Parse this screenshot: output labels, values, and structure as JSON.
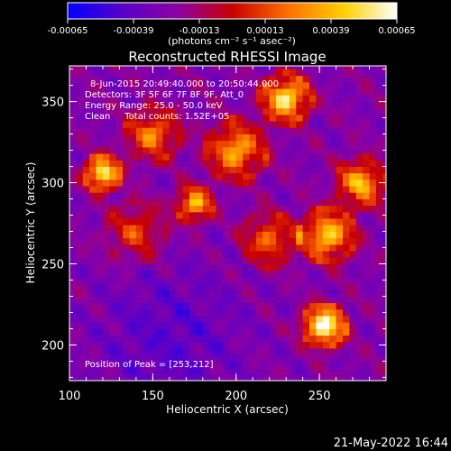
{
  "chart_data": {
    "type": "heatmap",
    "title": "Reconstructed RHESSI Image",
    "xlabel": "Heliocentric X (arcsec)",
    "ylabel": "Heliocentric Y (arcsec)",
    "xlim": [
      100,
      290
    ],
    "ylim": [
      178,
      372
    ],
    "x_ticks": [
      100,
      150,
      200,
      250
    ],
    "y_ticks": [
      200,
      250,
      300,
      350
    ],
    "x_tick_labels": [
      "100",
      "150",
      "200",
      "250"
    ],
    "y_tick_labels": [
      "200",
      "250",
      "300",
      "350"
    ],
    "colorbar": {
      "range": [
        -0.00065,
        0.00065
      ],
      "tick_values": [
        -0.00065,
        -0.00039,
        -0.00013,
        0.00013,
        0.00039,
        0.00065
      ],
      "tick_labels": [
        "-0.00065",
        "-0.00039",
        "-0.00013",
        "0.00013",
        "0.00039",
        "0.00065"
      ],
      "unit_label": "(photons cm⁻² s⁻¹ asec⁻²)",
      "colors": [
        "#0000ff",
        "#5a00c8",
        "#8e00a0",
        "#c80000",
        "#ff7000",
        "#ffd000",
        "#ffffff"
      ]
    },
    "annotations": [
      "8-Jun-2015 20:49:40.000 to 20:50:44.000",
      "Detectors: 3F 5F 6F 7F 8F 9F, Att_0",
      "Energy Range: 25.0 - 50.0 keV",
      "Clean     Total counts: 1.52E+05"
    ],
    "peak_label": "Position of Peak = [253,212]",
    "peak": [
      253,
      212
    ],
    "sources": [
      {
        "x": 253,
        "y": 212,
        "amp": 1.0,
        "sigma": 7
      },
      {
        "x": 120,
        "y": 306,
        "amp": 0.9,
        "sigma": 6
      },
      {
        "x": 230,
        "y": 352,
        "amp": 0.85,
        "sigma": 8
      },
      {
        "x": 175,
        "y": 287,
        "amp": 0.7,
        "sigma": 6
      },
      {
        "x": 255,
        "y": 268,
        "amp": 0.75,
        "sigma": 9
      },
      {
        "x": 275,
        "y": 300,
        "amp": 0.7,
        "sigma": 8
      },
      {
        "x": 200,
        "y": 320,
        "amp": 0.65,
        "sigma": 10
      },
      {
        "x": 150,
        "y": 330,
        "amp": 0.55,
        "sigma": 9
      },
      {
        "x": 220,
        "y": 265,
        "amp": 0.5,
        "sigma": 9
      },
      {
        "x": 140,
        "y": 270,
        "amp": 0.4,
        "sigma": 10
      }
    ]
  },
  "footer": {
    "timestamp": "21-May-2022 16:44"
  }
}
